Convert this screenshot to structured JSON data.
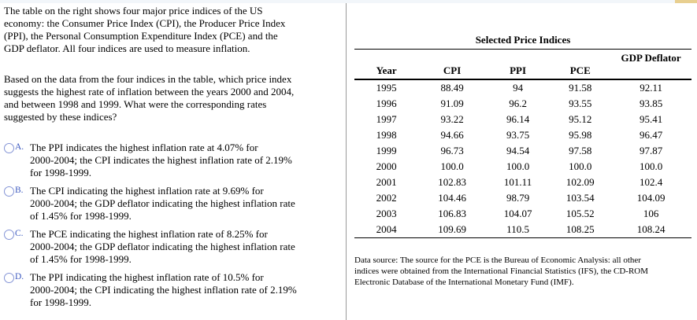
{
  "page": {
    "strip_color": "#f2f6fa",
    "accent_color": "#e8cf90",
    "divider_color": "#9a9a9a",
    "option_letter_color": "#3d5ac0"
  },
  "question": {
    "paragraphs": [
      {
        "lines": [
          "The table on the right shows four major price indices of the US",
          "economy: the Consumer Price Index (CPI), the Producer Price Index",
          "(PPI), the Personal Consumption Expenditure Index (PCE) and the",
          "GDP deflator. All four indices are used to measure inflation."
        ]
      },
      {
        "lines": [
          "Based on the data from the four indices in the table, which price index",
          "suggests the highest rate of inflation between the years 2000 and 2004,",
          "and between 1998 and 1999. What were the corresponding rates",
          "suggested by these indices?"
        ]
      }
    ],
    "options": [
      {
        "letter": "A.",
        "lines": [
          "The PPI indicates the highest inflation rate at 4.07% for",
          "2000-2004; the CPI indicates the highest inflation rate of 2.19%",
          "for 1998-1999."
        ]
      },
      {
        "letter": "B.",
        "lines": [
          "The CPI indicating the highest inflation rate at 9.69% for",
          "2000-2004; the GDP deflator indicating the highest inflation rate",
          "of 1.45% for 1998-1999."
        ]
      },
      {
        "letter": "C.",
        "lines": [
          "The PCE indicating the highest inflation rate of 8.25% for",
          "2000-2004; the GDP deflator indicating the highest inflation rate",
          "of 1.45% for 1998-1999."
        ]
      },
      {
        "letter": "D.",
        "lines": [
          "The PPI indicating the highest inflation rate of 10.5% for",
          "2000-2004; the CPI indicating the highest inflation rate of 2.19%",
          "for 1998-1999."
        ]
      }
    ]
  },
  "table": {
    "title": "Selected Price Indices",
    "gdp_header": "GDP Deflator",
    "columns": [
      "Year",
      "CPI",
      "PPI",
      "PCE"
    ],
    "rows": [
      [
        "1995",
        "88.49",
        "94",
        "91.58",
        "92.11"
      ],
      [
        "1996",
        "91.09",
        "96.2",
        "93.55",
        "93.85"
      ],
      [
        "1997",
        "93.22",
        "96.14",
        "95.12",
        "95.41"
      ],
      [
        "1998",
        "94.66",
        "93.75",
        "95.98",
        "96.47"
      ],
      [
        "1999",
        "96.73",
        "94.54",
        "97.58",
        "97.87"
      ],
      [
        "2000",
        "100.0",
        "100.0",
        "100.0",
        "100.0"
      ],
      [
        "2001",
        "102.83",
        "101.11",
        "102.09",
        "102.4"
      ],
      [
        "2002",
        "104.46",
        "98.79",
        "103.54",
        "104.09"
      ],
      [
        "2003",
        "106.83",
        "104.07",
        "105.52",
        "106"
      ],
      [
        "2004",
        "109.69",
        "110.5",
        "108.25",
        "108.24"
      ]
    ]
  },
  "source_note": {
    "lines": [
      "Data source: The source for the PCE is the Bureau of Economic Analysis: all other",
      "indices were obtained from the International Financial Statistics (IFS), the CD-ROM",
      "Electronic Database of the International Monetary Fund (IMF)."
    ]
  }
}
